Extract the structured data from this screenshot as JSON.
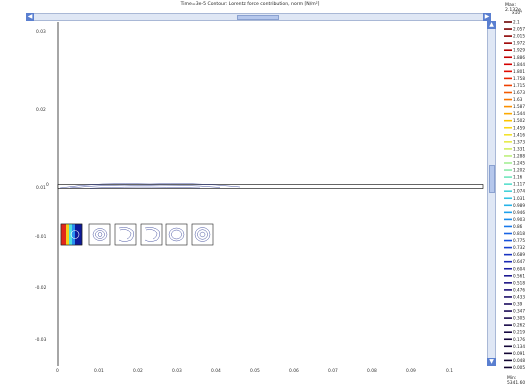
{
  "window": {
    "title": "Time=3e-5   Contour: Lorentz force contribution, norm [N/m²]"
  },
  "legend": {
    "max_label": "Max: 2.132e",
    "unit_label": "x10⁴",
    "min_label": "Min: 5341.60",
    "entries": [
      "2.1",
      "2.057",
      "2.015",
      "1.972",
      "1.929",
      "1.886",
      "1.844",
      "1.801",
      "1.758",
      "1.715",
      "1.673",
      "1.63",
      "1.587",
      "1.544",
      "1.502",
      "1.459",
      "1.416",
      "1.373",
      "1.331",
      "1.288",
      "1.245",
      "1.202",
      "1.16",
      "1.117",
      "1.074",
      "1.031",
      "0.989",
      "0.946",
      "0.903",
      "0.86",
      "0.818",
      "0.775",
      "0.732",
      "0.689",
      "0.647",
      "0.604",
      "0.561",
      "0.518",
      "0.476",
      "0.433",
      "0.39",
      "0.347",
      "0.305",
      "0.262",
      "0.219",
      "0.176",
      "0.134",
      "0.091",
      "0.048",
      "0.005"
    ],
    "colors": [
      "#6b0000",
      "#7a0000",
      "#8c0000",
      "#9e0000",
      "#b00000",
      "#c20000",
      "#d40000",
      "#e10a00",
      "#e82400",
      "#ee3f00",
      "#f35a00",
      "#f77500",
      "#fa8f00",
      "#fcaa00",
      "#fdc400",
      "#fbd714",
      "#f3e22d",
      "#e6ea47",
      "#d3ee61",
      "#bdef7b",
      "#a4ee94",
      "#8aebaa",
      "#70e6bd",
      "#58decd",
      "#43d2d9",
      "#32c4e2",
      "#26b3e8",
      "#1ea0ec",
      "#1a8cec",
      "#1878ea",
      "#1864e4",
      "#1852dc",
      "#1842d0",
      "#1934c2",
      "#1a29b3",
      "#1b20a3",
      "#1c1993",
      "#1c1484",
      "#1c1076",
      "#1b0d69",
      "#1a0b5e",
      "#190a55",
      "#18094d",
      "#170847",
      "#160841",
      "#15073c",
      "#140738",
      "#130634",
      "#120631",
      "#11052e"
    ]
  },
  "axes": {
    "y_ticks": [
      "0.03",
      "0.02",
      "0.01",
      "0",
      "-0.01",
      "-0.02",
      "-0.03"
    ],
    "x_ticks": [
      "0",
      "0.01",
      "0.02",
      "0.03",
      "0.04",
      "0.05",
      "0.06",
      "0.07",
      "0.08",
      "0.09",
      "0.1"
    ]
  },
  "scroll": {
    "left_arrow": "◀",
    "right_arrow": "▶",
    "up_arrow": "▲",
    "down_arrow": "▼"
  }
}
